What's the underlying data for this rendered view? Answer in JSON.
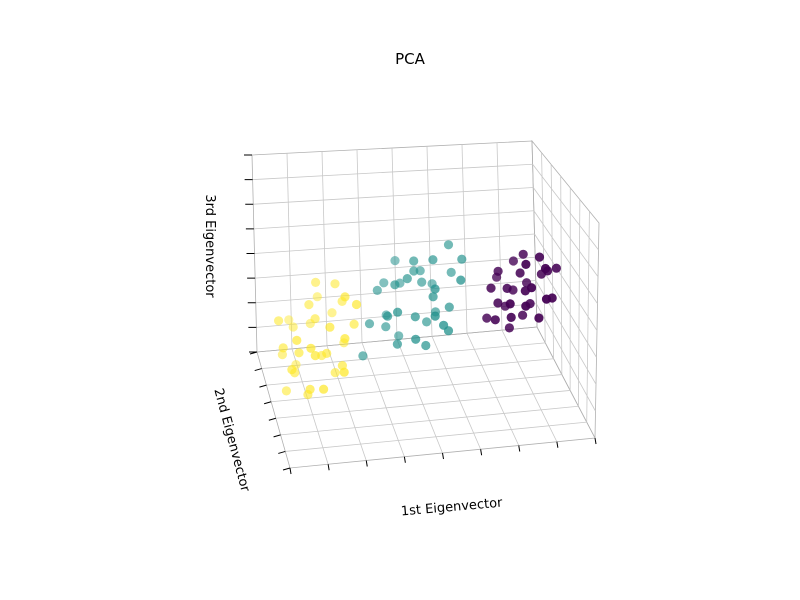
{
  "chart_data": {
    "type": "scatter",
    "projection": "3d",
    "title": "PCA",
    "xlabel": "1st Eigenvector",
    "ylabel": "2nd Eigenvector",
    "zlabel": "3rd Eigenvector",
    "grid": true,
    "tick_labels": false,
    "colormap": "viridis",
    "series": [
      {
        "color": "#440154",
        "points": [
          [
            -3.6,
            0.4,
            -0.2
          ],
          [
            -3.5,
            0.9,
            0.0
          ],
          [
            -3.4,
            0.1,
            0.3
          ],
          [
            -3.3,
            0.6,
            -0.5
          ],
          [
            -3.2,
            -0.3,
            0.1
          ],
          [
            -3.1,
            1.1,
            0.4
          ],
          [
            -3.0,
            0.2,
            -0.3
          ],
          [
            -2.9,
            0.7,
            0.2
          ],
          [
            -2.8,
            -0.5,
            -0.1
          ],
          [
            -2.7,
            0.4,
            0.5
          ],
          [
            -2.6,
            1.0,
            -0.2
          ],
          [
            -2.5,
            0.0,
            0.0
          ],
          [
            -2.4,
            0.6,
            0.3
          ],
          [
            -2.3,
            -0.2,
            -0.4
          ],
          [
            -2.2,
            0.8,
            0.1
          ],
          [
            -2.1,
            0.3,
            0.6
          ],
          [
            -2.0,
            -0.4,
            0.2
          ],
          [
            -1.9,
            0.5,
            -0.3
          ],
          [
            -3.0,
            1.3,
            0.1
          ],
          [
            -2.6,
            1.5,
            0.3
          ],
          [
            -2.8,
            0.0,
            -0.6
          ],
          [
            -3.4,
            0.7,
            0.6
          ],
          [
            -2.2,
            1.2,
            -0.1
          ],
          [
            -2.4,
            -0.6,
            0.4
          ],
          [
            -3.2,
            0.5,
            0.8
          ],
          [
            -2.0,
            0.9,
            0.5
          ],
          [
            -2.7,
            -0.1,
            0.7
          ],
          [
            -3.6,
            -0.2,
            0.2
          ],
          [
            -2.5,
            0.3,
            -0.7
          ],
          [
            -2.9,
            1.0,
            0.9
          ]
        ]
      },
      {
        "color": "#21918c",
        "points": [
          [
            -1.0,
            -0.8,
            0.6
          ],
          [
            -0.8,
            -0.3,
            -0.2
          ],
          [
            -0.6,
            -1.0,
            0.9
          ],
          [
            -0.4,
            0.2,
            0.3
          ],
          [
            -0.2,
            -0.5,
            -0.5
          ],
          [
            0.0,
            0.6,
            0.1
          ],
          [
            0.2,
            -0.2,
            0.8
          ],
          [
            0.4,
            0.9,
            -0.3
          ],
          [
            0.6,
            -0.7,
            0.4
          ],
          [
            0.8,
            0.3,
            -0.1
          ],
          [
            1.0,
            -0.4,
            0.6
          ],
          [
            1.2,
            0.7,
            0.2
          ],
          [
            -0.9,
            0.5,
            -0.4
          ],
          [
            -0.7,
            -1.2,
            0.2
          ],
          [
            -0.5,
            0.8,
            0.7
          ],
          [
            -0.3,
            -0.1,
            1.0
          ],
          [
            -0.1,
            1.1,
            -0.2
          ],
          [
            0.1,
            -0.9,
            0.5
          ],
          [
            0.3,
            0.4,
            0.9
          ],
          [
            0.5,
            -0.3,
            -0.6
          ],
          [
            0.7,
            1.0,
            0.4
          ],
          [
            0.9,
            -0.6,
            -0.2
          ],
          [
            1.1,
            0.2,
            0.7
          ],
          [
            -0.6,
            1.3,
            0.3
          ],
          [
            -0.2,
            -1.3,
            0.0
          ],
          [
            0.4,
            1.4,
            0.6
          ],
          [
            0.2,
            0.0,
            1.1
          ],
          [
            -0.8,
            0.9,
            -0.1
          ],
          [
            0.6,
            0.6,
            0.9
          ],
          [
            -0.4,
            -0.7,
            -0.4
          ],
          [
            1.3,
            0.9,
            -0.4
          ],
          [
            -1.1,
            0.1,
            0.5
          ],
          [
            0.0,
            -0.5,
            0.4
          ],
          [
            0.8,
            -1.0,
            0.8
          ],
          [
            -0.3,
            0.3,
            -0.7
          ]
        ]
      },
      {
        "color": "#fde725",
        "points": [
          [
            1.6,
            0.8,
            0.3
          ],
          [
            1.8,
            1.2,
            -0.4
          ],
          [
            2.0,
            0.4,
            0.7
          ],
          [
            2.2,
            1.6,
            0.1
          ],
          [
            2.4,
            0.9,
            -0.2
          ],
          [
            2.6,
            1.3,
            0.8
          ],
          [
            2.8,
            0.5,
            0.4
          ],
          [
            3.0,
            1.8,
            -0.1
          ],
          [
            3.2,
            1.0,
            0.6
          ],
          [
            3.4,
            1.4,
            0.2
          ],
          [
            1.7,
            2.0,
            0.5
          ],
          [
            1.9,
            0.2,
            -0.3
          ],
          [
            2.1,
            2.2,
            0.9
          ],
          [
            2.3,
            -0.1,
            0.3
          ],
          [
            2.5,
            2.4,
            -0.3
          ],
          [
            2.7,
            0.1,
            0.8
          ],
          [
            2.9,
            2.0,
            0.4
          ],
          [
            3.1,
            0.6,
            -0.4
          ],
          [
            3.3,
            2.3,
            0.7
          ],
          [
            1.5,
            1.5,
            1.0
          ],
          [
            2.0,
            1.0,
            -0.6
          ],
          [
            2.4,
            2.6,
            0.5
          ],
          [
            2.8,
            1.2,
            1.1
          ],
          [
            3.2,
            1.7,
            -0.5
          ],
          [
            1.6,
            2.6,
            0.0
          ],
          [
            2.2,
            0.6,
            1.2
          ],
          [
            2.6,
            1.9,
            -0.6
          ],
          [
            3.0,
            2.6,
            0.3
          ],
          [
            3.4,
            0.3,
            0.5
          ],
          [
            1.8,
            1.7,
            1.3
          ],
          [
            2.5,
            2.9,
            0.8
          ],
          [
            2.9,
            2.8,
            1.0
          ],
          [
            3.5,
            2.0,
            1.2
          ],
          [
            2.1,
            2.8,
            -0.2
          ],
          [
            2.7,
            0.8,
            1.4
          ]
        ]
      }
    ]
  }
}
